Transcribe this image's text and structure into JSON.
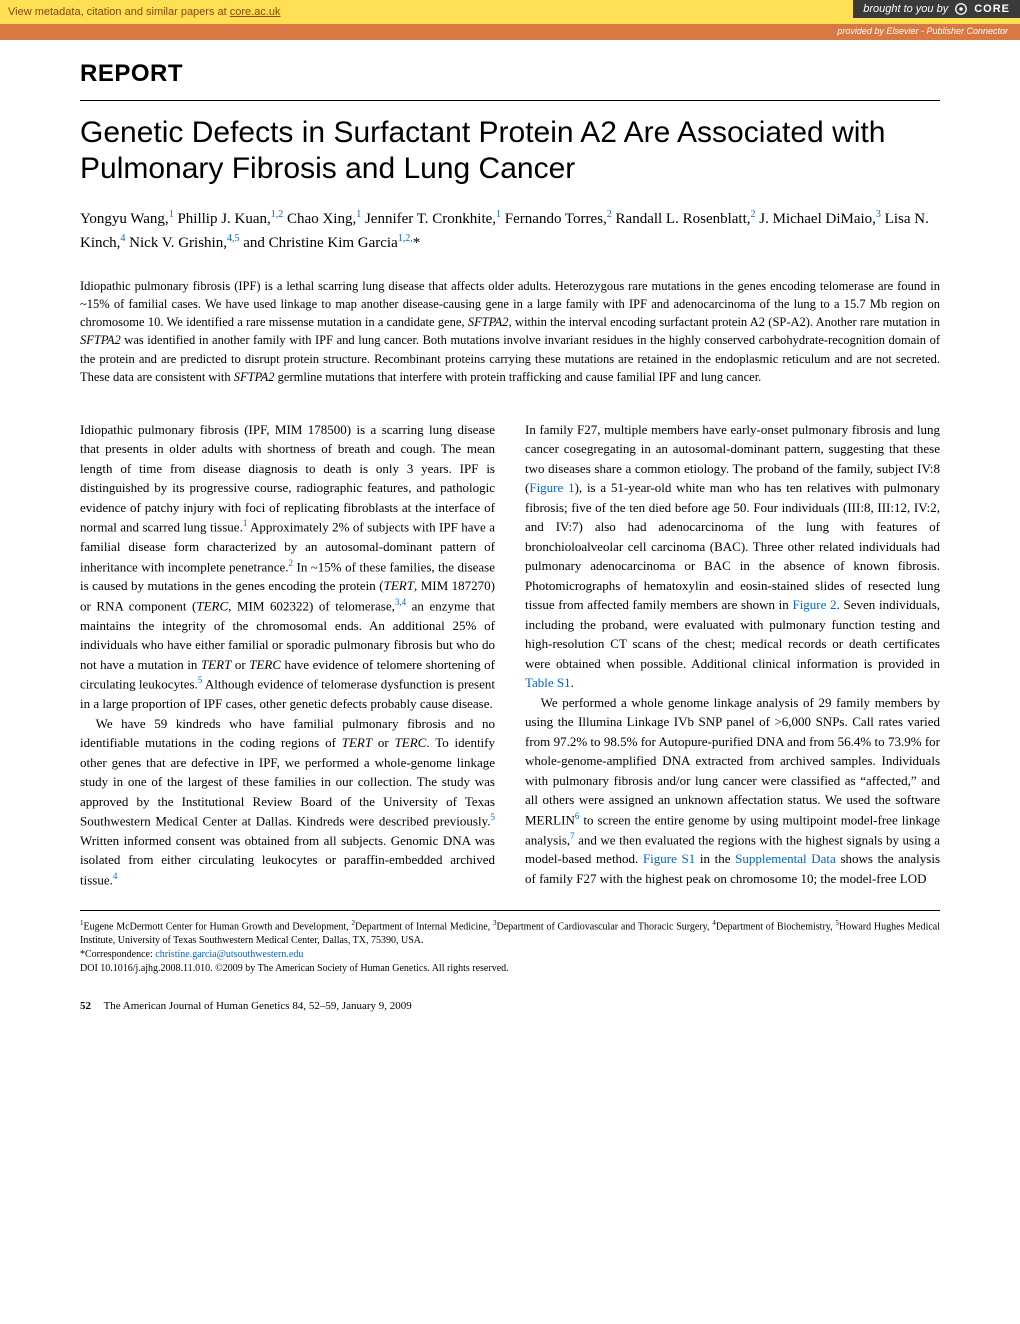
{
  "banner": {
    "left_prefix": "View metadata, citation and similar papers at ",
    "left_link": "core.ac.uk",
    "brought_by": "brought to you by",
    "core": "CORE",
    "provider": "provided by Elsevier - Publisher Connector"
  },
  "report_label": "REPORT",
  "title": "Genetic Defects in Surfactant Protein A2 Are Associated with Pulmonary Fibrosis and Lung Cancer",
  "authors_html": "Yongyu Wang,<sup>1</sup> Phillip J. Kuan,<sup>1,2</sup> Chao Xing,<sup>1</sup> Jennifer T. Cronkhite,<sup>1</sup> Fernando Torres,<sup>2</sup> Randall L. Rosenblatt,<sup>2</sup> J. Michael DiMaio,<sup>3</sup> Lisa N. Kinch,<sup>4</sup> Nick V. Grishin,<sup>4,5</sup> and Christine Kim Garcia<sup>1,2,</sup>*",
  "abstract": "Idiopathic pulmonary fibrosis (IPF) is a lethal scarring lung disease that affects older adults. Heterozygous rare mutations in the genes encoding telomerase are found in ~15% of familial cases. We have used linkage to map another disease-causing gene in a large family with IPF and adenocarcinoma of the lung to a 15.7 Mb region on chromosome 10. We identified a rare missense mutation in a candidate gene, <span class=\"ital\">SFTPA2</span>, within the interval encoding surfactant protein A2 (SP-A2). Another rare mutation in <span class=\"ital\">SFTPA2</span> was identified in another family with IPF and lung cancer. Both mutations involve invariant residues in the highly conserved carbohydrate-recognition domain of the protein and are predicted to disrupt protein structure. Recombinant proteins carrying these mutations are retained in the endoplasmic reticulum and are not secreted. These data are consistent with <span class=\"ital\">SFTPA2</span> germline mutations that interfere with protein trafficking and cause familial IPF and lung cancer.",
  "col_left": {
    "p1": "Idiopathic pulmonary fibrosis (IPF, MIM 178500) is a scarring lung disease that presents in older adults with shortness of breath and cough. The mean length of time from disease diagnosis to death is only 3 years. IPF is distinguished by its progressive course, radiographic features, and pathologic evidence of patchy injury with foci of replicating fibroblasts at the interface of normal and scarred lung tissue.<sup>1</sup> Approximately 2% of subjects with IPF have a familial disease form characterized by an autosomal-dominant pattern of inheritance with incomplete penetrance.<sup>2</sup> In ~15% of these families, the disease is caused by mutations in the genes encoding the protein (<span class=\"ital\">TERT</span>, MIM 187270) or RNA component (<span class=\"ital\">TERC</span>, MIM 602322) of telomerase,<sup>3,4</sup> an enzyme that maintains the integrity of the chromosomal ends. An additional 25% of individuals who have either familial or sporadic pulmonary fibrosis but who do not have a mutation in <span class=\"ital\">TERT</span> or <span class=\"ital\">TERC</span> have evidence of telomere shortening of circulating leukocytes.<sup>5</sup> Although evidence of telomerase dysfunction is present in a large proportion of IPF cases, other genetic defects probably cause disease.",
    "p2": "We have 59 kindreds who have familial pulmonary fibrosis and no identifiable mutations in the coding regions of <span class=\"ital\">TERT</span> or <span class=\"ital\">TERC</span>. To identify other genes that are defective in IPF, we performed a whole-genome linkage study in one of the largest of these families in our collection. The study was approved by the Institutional Review Board of the University of Texas Southwestern Medical Center at Dallas. Kindreds were described previously.<sup>5</sup> Written informed consent was obtained from all subjects. Genomic DNA was isolated from either circulating leukocytes or paraffin-embedded archived tissue.<sup>4</sup>"
  },
  "col_right": {
    "p1": "In family F27, multiple members have early-onset pulmonary fibrosis and lung cancer cosegregating in an autosomal-dominant pattern, suggesting that these two diseases share a common etiology. The proband of the family, subject IV:8 (<a class=\"link\">Figure 1</a>), is a 51-year-old white man who has ten relatives with pulmonary fibrosis; five of the ten died before age 50. Four individuals (III:8, III:12, IV:2, and IV:7) also had adenocarcinoma of the lung with features of bronchioloalveolar cell carcinoma (BAC). Three other related individuals had pulmonary adenocarcinoma or BAC in the absence of known fibrosis. Photomicrographs of hematoxylin and eosin-stained slides of resected lung tissue from affected family members are shown in <a class=\"link\">Figure 2</a>. Seven individuals, including the proband, were evaluated with pulmonary function testing and high-resolution CT scans of the chest; medical records or death certificates were obtained when possible. Additional clinical information is provided in <a class=\"link\">Table S1</a>.",
    "p2": "We performed a whole genome linkage analysis of 29 family members by using the Illumina Linkage IVb SNP panel of &gt;6,000 SNPs. Call rates varied from 97.2% to 98.5% for Autopure-purified DNA and from 56.4% to 73.9% for whole-genome-amplified DNA extracted from archived samples. Individuals with pulmonary fibrosis and/or lung cancer were classified as &ldquo;affected,&rdquo; and all others were assigned an unknown affectation status. We used the software MERLIN<sup>6</sup> to screen the entire genome by using multipoint model-free linkage analysis,<sup>7</sup> and we then evaluated the regions with the highest signals by using a model-based method. <a class=\"link\">Figure S1</a> in the <a class=\"link\">Supplemental Data</a> shows the analysis of family F27 with the highest peak on chromosome 10; the model-free LOD"
  },
  "affiliations": "<sup>1</sup>Eugene McDermott Center for Human Growth and Development, <sup>2</sup>Department of Internal Medicine, <sup>3</sup>Department of Cardiovascular and Thoracic Surgery, <sup>4</sup>Department of Biochemistry, <sup>5</sup>Howard Hughes Medical Institute, University of Texas Southwestern Medical Center, Dallas, TX, 75390, USA.<br>*Correspondence: <a>christine.garcia@utsouthwestern.edu</a><br>DOI 10.1016/j.ajhg.2008.11.010. &copy;2009 by The American Society of Human Genetics. All rights reserved.",
  "footer": {
    "page": "52",
    "journal": "The American Journal of Human Genetics 84",
    "rest": ", 52–59, January 9, 2009"
  },
  "colors": {
    "banner_bg": "#fde053",
    "banner_text": "#8b4513",
    "core_bg": "#3a3a3a",
    "provider_bg": "#d97842",
    "link_color": "#0066cc"
  }
}
